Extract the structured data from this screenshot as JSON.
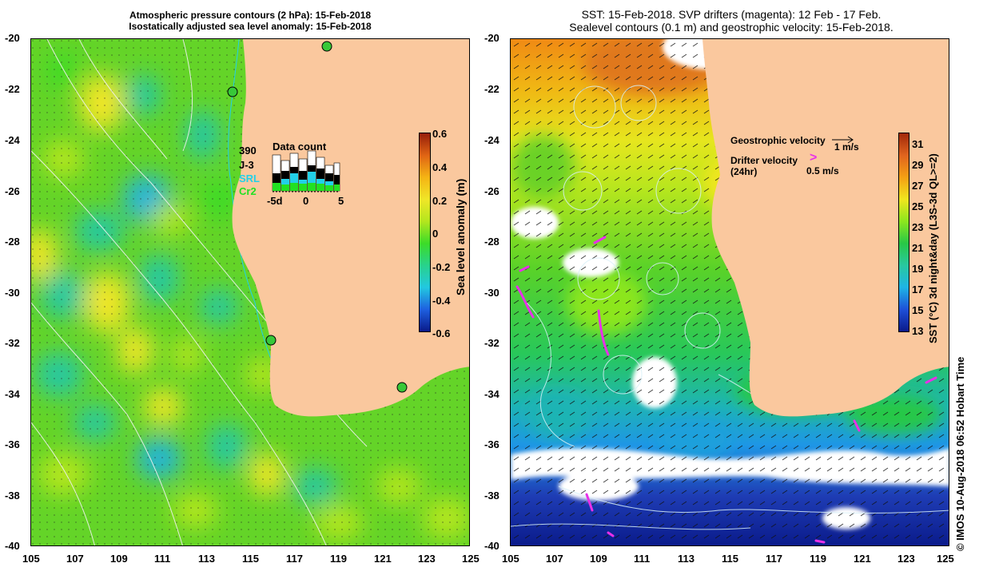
{
  "left_panel": {
    "title_line1": "Atmospheric pressure contours (2 hPa): 15-Feb-2018",
    "title_line2": "Isostatically adjusted sea level anomaly: 15-Feb-2018",
    "colorbar_label": "Sea level anomaly (m)",
    "colorbar_ticks": [
      "0.6",
      "0.4",
      "0.2",
      "0",
      "-0.2",
      "-0.4",
      "-0.6"
    ],
    "inset": {
      "count": "390",
      "title": "Data count",
      "legend": [
        {
          "label": "J-3",
          "color": "#000000"
        },
        {
          "label": "SRL",
          "color": "#22d0e8"
        },
        {
          "label": "Cr2",
          "color": "#22e022"
        }
      ],
      "x_ticks": [
        "-5d",
        "0",
        "5"
      ]
    }
  },
  "right_panel": {
    "title_line1": "SST: 15-Feb-2018. SVP drifters (magenta): 12 Feb - 17 Feb.",
    "title_line2": "Sealevel contours (0.1 m) and geostrophic velocity: 15-Feb-2018.",
    "colorbar_label": "SST (°C) 3d night&day (L3S-3d QL>=2)",
    "colorbar_ticks": [
      "31",
      "29",
      "27",
      "25",
      "23",
      "21",
      "19",
      "17",
      "15",
      "13"
    ],
    "legend": {
      "geo_label": "Geostrophic velocity",
      "geo_value": "1 m/s",
      "drifter_label": "Drifter velocity",
      "drifter_sub": "(24hr)",
      "drifter_value": "0.5 m/s",
      "drifter_symbol": ">"
    }
  },
  "axes": {
    "lat_labels": [
      "-20",
      "-22",
      "-24",
      "-26",
      "-28",
      "-30",
      "-32",
      "-34",
      "-36",
      "-38",
      "-40"
    ],
    "lon_labels": [
      "105",
      "107",
      "109",
      "111",
      "113",
      "115",
      "117",
      "119",
      "121",
      "123",
      "125"
    ]
  },
  "credit": "©  IMOS 10-Aug-2018 06:52 Hobart Time",
  "colors": {
    "land": "#fac89e",
    "sla_ramp": [
      "#0a1a8a",
      "#1e60e0",
      "#22c8e0",
      "#28d28c",
      "#3cdc28",
      "#b4e61e",
      "#f0e628",
      "#f5b414",
      "#e06414",
      "#961e0a"
    ],
    "sst_ramp": [
      "#0a1a8a",
      "#1e50d8",
      "#1eb4e6",
      "#28c8a0",
      "#28c846",
      "#8ce61e",
      "#f0e61e",
      "#f5a014",
      "#e0641e",
      "#a0280a"
    ],
    "drifter": "#e830e8",
    "tide_gauge": "#38c838"
  }
}
